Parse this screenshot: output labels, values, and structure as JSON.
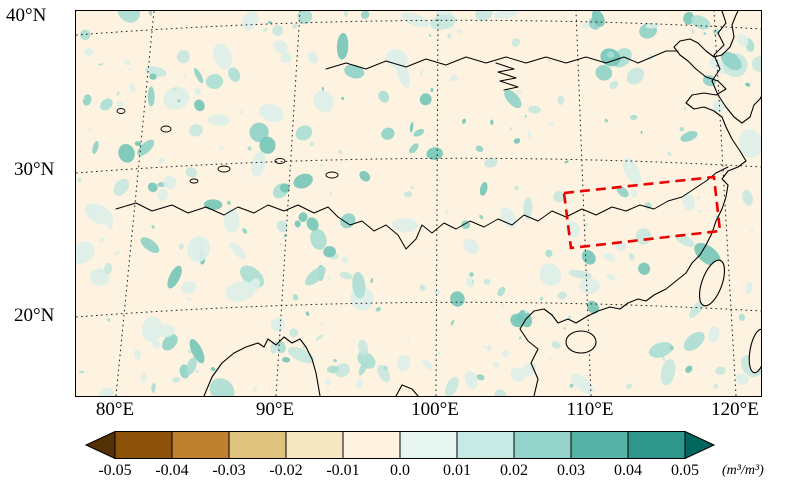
{
  "figure": {
    "kind": "soil moisture difference map"
  },
  "axes": {
    "lat_ticks": [
      "40°N",
      "30°N",
      "20°N"
    ],
    "lon_ticks": [
      "80°E",
      "90°E",
      "100°E",
      "110°E",
      "120°E"
    ]
  },
  "colorbar": {
    "tick_labels": [
      "-0.05",
      "-0.04",
      "-0.03",
      "-0.02",
      "-0.01",
      "0.0",
      "0.01",
      "0.02",
      "0.03",
      "0.04",
      "0.05"
    ],
    "unit": "(m³/m³)",
    "colors": [
      "#543005",
      "#8c510a",
      "#bf812d",
      "#dfc27d",
      "#f6e8c3",
      "#fdf3e0",
      "#e7f5f1",
      "#c7eae5",
      "#93d3c9",
      "#55b2a7",
      "#2f968c",
      "#01665e"
    ]
  },
  "map": {
    "land_color": "#fdf3e0",
    "coast_color": "#000000",
    "speckle_shades": [
      "#ddf0ea",
      "#c6e7df",
      "#abded4",
      "#8fd2c7",
      "#74c5b8"
    ],
    "highlight_box_color": "#ef0000"
  },
  "chart_data": {
    "type": "heatmap",
    "title": "",
    "xlabel": "",
    "ylabel": "",
    "x_ticks": [
      "80°E",
      "90°E",
      "100°E",
      "110°E",
      "120°E"
    ],
    "y_ticks": [
      "40°N",
      "30°N",
      "20°N"
    ],
    "x_range_deg_east": [
      75,
      122
    ],
    "y_range_deg_north": [
      15,
      41
    ],
    "value_unit": "m³/m³",
    "value_range": [
      -0.05,
      0.05
    ],
    "step": 0.01,
    "colormap": "BrBG-style: brown = negative, cream = near zero, teal = positive, triangular extended ends",
    "field_summary": "Difference field near zero (cream) over most of the domain with many small scattered positive patches of about +0.01 to +0.03 (light teal); no large coherent negative (brown) areas visible.",
    "highlight_region": {
      "shape": "red dashed rectangle",
      "lon_range_deg_east": [
        107,
        118.5
      ],
      "lat_range_deg_north": [
        25,
        30
      ]
    }
  }
}
